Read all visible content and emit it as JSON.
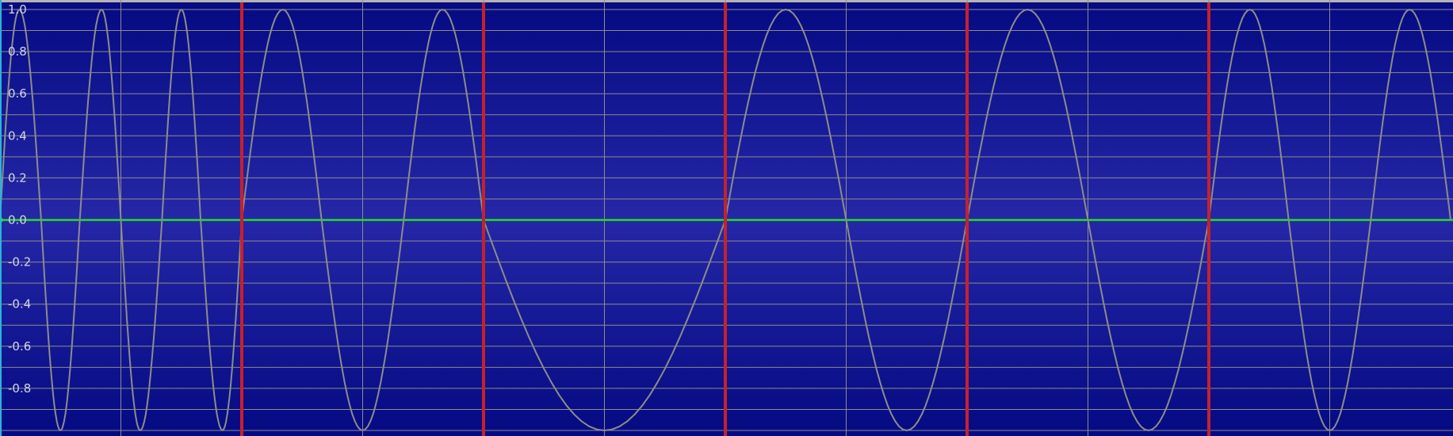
{
  "chart_data": {
    "type": "line",
    "title": "",
    "xlabel": "",
    "ylabel": "",
    "ylim": [
      -1.0,
      1.0
    ],
    "y_tick_labels": [
      "1.0",
      "0.8",
      "0.6",
      "0.4",
      "0.2",
      "0.0",
      "-0.2",
      "-0.4",
      "-0.6",
      "-0.8"
    ],
    "x_range_segments": 6,
    "grid": true,
    "background": {
      "top": "#050a82",
      "middle": "#2527a6",
      "bottom": "#050a82"
    },
    "grid_color": "#8c8c8c",
    "line_color": "#8c8c8c",
    "zero_line_color": "#22e022",
    "marker_color": "#c8202a",
    "markers_x": [
      1,
      2,
      3,
      4,
      5
    ],
    "series": [
      {
        "x": [
          0.0,
          0.08,
          0.17,
          0.25,
          0.33,
          0.42,
          0.5,
          0.58,
          0.67,
          0.75,
          0.83,
          0.92,
          1.0,
          1.17,
          1.33,
          1.5,
          1.67,
          1.83,
          2.0,
          2.5,
          3.0,
          3.25,
          3.5,
          3.75,
          4.0,
          4.25,
          4.5,
          4.75,
          5.0,
          5.17,
          5.33,
          5.5,
          5.67,
          5.83,
          6.0
        ],
        "y": [
          0.0,
          1.0,
          0.0,
          -1.0,
          0.0,
          1.0,
          0.0,
          -1.0,
          0.0,
          1.0,
          0.0,
          -1.0,
          0.0,
          1.0,
          0.0,
          -1.0,
          0.0,
          1.0,
          0.0,
          -1.0,
          0.0,
          1.0,
          0.0,
          -1.0,
          0.0,
          1.0,
          0.0,
          -1.0,
          0.0,
          1.0,
          0.0,
          -1.0,
          0.0,
          1.0,
          0.0
        ]
      }
    ]
  }
}
